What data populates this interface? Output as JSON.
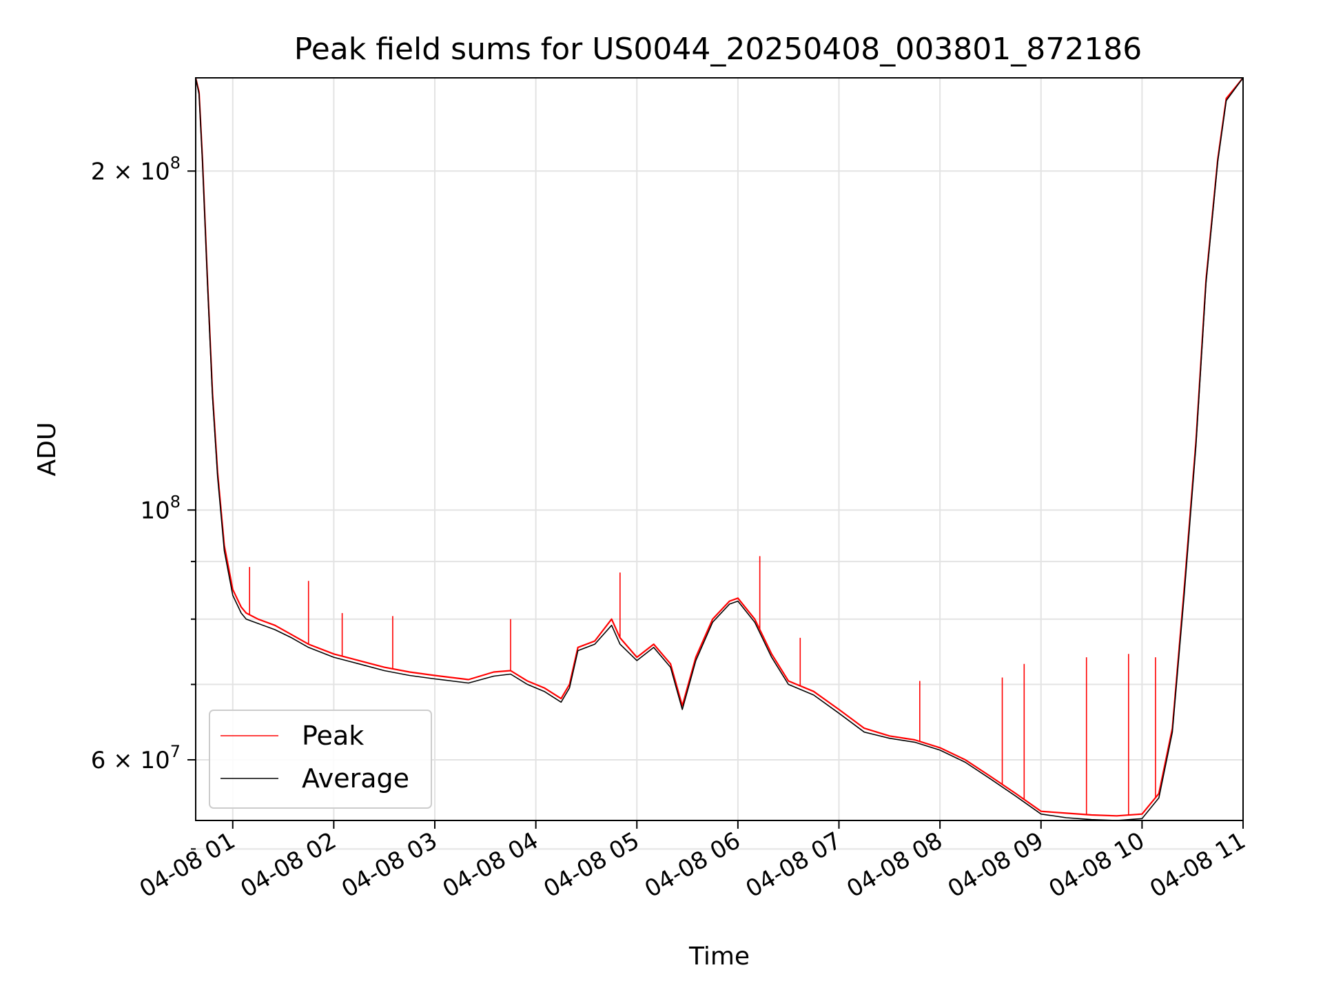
{
  "chart_data": {
    "type": "line",
    "title": "Peak field sums for US0044_20250408_003801_872186",
    "xlabel": "Time",
    "ylabel": "ADU",
    "yscale": "log",
    "ylim": [
      53000000,
      242000000
    ],
    "xlim": [
      "2025-04-08T00:38",
      "2025-04-08T11:00"
    ],
    "grid": true,
    "legend_position": "lower left",
    "x_ticks": [
      "04-08 01",
      "04-08 02",
      "04-08 03",
      "04-08 04",
      "04-08 05",
      "04-08 06",
      "04-08 07",
      "04-08 08",
      "04-08 09",
      "04-08 10",
      "04-08 11"
    ],
    "y_tick_labels": [
      {
        "value": 200000000,
        "mantissa": "2",
        "times": "×",
        "base": "10",
        "exp": "8"
      },
      {
        "value": 100000000,
        "mantissa": "",
        "times": "",
        "base": "10",
        "exp": "8"
      },
      {
        "value": 60000000,
        "mantissa": "6",
        "times": "×",
        "base": "10",
        "exp": "7"
      }
    ],
    "y_minor_ticks": [
      50000000,
      70000000,
      80000000,
      90000000
    ],
    "colors": {
      "peak": "#ff0000",
      "average": "#000000"
    },
    "series": [
      {
        "name": "Peak",
        "color": "#ff0000",
        "x": [
          "2025-04-08T00:38",
          "2025-04-08T00:40",
          "2025-04-08T00:42",
          "2025-04-08T00:45",
          "2025-04-08T00:48",
          "2025-04-08T00:51",
          "2025-04-08T00:55",
          "2025-04-08T01:00",
          "2025-04-08T01:05",
          "2025-04-08T01:08",
          "2025-04-08T01:15",
          "2025-04-08T01:25",
          "2025-04-08T01:35",
          "2025-04-08T01:45",
          "2025-04-08T02:00",
          "2025-04-08T02:15",
          "2025-04-08T02:30",
          "2025-04-08T02:45",
          "2025-04-08T03:00",
          "2025-04-08T03:20",
          "2025-04-08T03:35",
          "2025-04-08T03:45",
          "2025-04-08T03:55",
          "2025-04-08T04:05",
          "2025-04-08T04:15",
          "2025-04-08T04:20",
          "2025-04-08T04:25",
          "2025-04-08T04:35",
          "2025-04-08T04:45",
          "2025-04-08T04:50",
          "2025-04-08T05:00",
          "2025-04-08T05:10",
          "2025-04-08T05:20",
          "2025-04-08T05:27",
          "2025-04-08T05:35",
          "2025-04-08T05:45",
          "2025-04-08T05:55",
          "2025-04-08T06:00",
          "2025-04-08T06:10",
          "2025-04-08T06:20",
          "2025-04-08T06:30",
          "2025-04-08T06:45",
          "2025-04-08T07:00",
          "2025-04-08T07:15",
          "2025-04-08T07:30",
          "2025-04-08T07:45",
          "2025-04-08T08:00",
          "2025-04-08T08:15",
          "2025-04-08T08:30",
          "2025-04-08T08:45",
          "2025-04-08T09:00",
          "2025-04-08T09:15",
          "2025-04-08T09:30",
          "2025-04-08T09:45",
          "2025-04-08T10:00",
          "2025-04-08T10:10",
          "2025-04-08T10:18",
          "2025-04-08T10:25",
          "2025-04-08T10:32",
          "2025-04-08T10:38",
          "2025-04-08T10:45",
          "2025-04-08T10:50",
          "2025-04-08T11:00"
        ],
        "y": [
          242000000,
          235000000,
          205000000,
          160000000,
          127000000,
          108000000,
          93000000,
          85000000,
          82000000,
          81000000,
          80000000,
          79000000,
          77500000,
          76000000,
          74500000,
          73500000,
          72500000,
          71800000,
          71300000,
          70700000,
          71800000,
          72000000,
          70500000,
          69500000,
          68000000,
          70000000,
          75500000,
          76500000,
          80000000,
          77000000,
          74000000,
          76000000,
          73000000,
          67000000,
          74000000,
          80000000,
          83000000,
          83500000,
          80000000,
          74500000,
          70500000,
          69000000,
          66500000,
          64000000,
          63000000,
          62500000,
          61500000,
          60000000,
          58000000,
          56000000,
          54000000,
          53800000,
          53600000,
          53500000,
          53700000,
          56000000,
          64000000,
          85000000,
          115000000,
          160000000,
          205000000,
          232000000,
          242000000
        ],
        "spikes": [
          {
            "x": "2025-04-08T01:10",
            "y": 89000000
          },
          {
            "x": "2025-04-08T01:45",
            "y": 86500000
          },
          {
            "x": "2025-04-08T02:05",
            "y": 81000000
          },
          {
            "x": "2025-04-08T02:35",
            "y": 80500000
          },
          {
            "x": "2025-04-08T03:45",
            "y": 80000000
          },
          {
            "x": "2025-04-08T04:50",
            "y": 88000000
          },
          {
            "x": "2025-04-08T06:13",
            "y": 91000000
          },
          {
            "x": "2025-04-08T06:37",
            "y": 77000000
          },
          {
            "x": "2025-04-08T07:48",
            "y": 70500000
          },
          {
            "x": "2025-04-08T08:37",
            "y": 71000000
          },
          {
            "x": "2025-04-08T08:50",
            "y": 73000000
          },
          {
            "x": "2025-04-08T09:27",
            "y": 74000000
          },
          {
            "x": "2025-04-08T09:52",
            "y": 74500000
          },
          {
            "x": "2025-04-08T10:08",
            "y": 74000000
          }
        ]
      },
      {
        "name": "Average",
        "color": "#000000",
        "x": [
          "2025-04-08T00:38",
          "2025-04-08T00:40",
          "2025-04-08T00:42",
          "2025-04-08T00:45",
          "2025-04-08T00:48",
          "2025-04-08T00:51",
          "2025-04-08T00:55",
          "2025-04-08T01:00",
          "2025-04-08T01:05",
          "2025-04-08T01:08",
          "2025-04-08T01:15",
          "2025-04-08T01:25",
          "2025-04-08T01:35",
          "2025-04-08T01:45",
          "2025-04-08T02:00",
          "2025-04-08T02:15",
          "2025-04-08T02:30",
          "2025-04-08T02:45",
          "2025-04-08T03:00",
          "2025-04-08T03:20",
          "2025-04-08T03:35",
          "2025-04-08T03:45",
          "2025-04-08T03:55",
          "2025-04-08T04:05",
          "2025-04-08T04:15",
          "2025-04-08T04:20",
          "2025-04-08T04:25",
          "2025-04-08T04:35",
          "2025-04-08T04:45",
          "2025-04-08T04:50",
          "2025-04-08T05:00",
          "2025-04-08T05:10",
          "2025-04-08T05:20",
          "2025-04-08T05:27",
          "2025-04-08T05:35",
          "2025-04-08T05:45",
          "2025-04-08T05:55",
          "2025-04-08T06:00",
          "2025-04-08T06:10",
          "2025-04-08T06:20",
          "2025-04-08T06:30",
          "2025-04-08T06:45",
          "2025-04-08T07:00",
          "2025-04-08T07:15",
          "2025-04-08T07:30",
          "2025-04-08T07:45",
          "2025-04-08T08:00",
          "2025-04-08T08:15",
          "2025-04-08T08:30",
          "2025-04-08T08:45",
          "2025-04-08T09:00",
          "2025-04-08T09:15",
          "2025-04-08T09:30",
          "2025-04-08T09:45",
          "2025-04-08T10:00",
          "2025-04-08T10:10",
          "2025-04-08T10:18",
          "2025-04-08T10:25",
          "2025-04-08T10:32",
          "2025-04-08T10:38",
          "2025-04-08T10:45",
          "2025-04-08T10:50",
          "2025-04-08T11:00"
        ],
        "y": [
          242000000,
          234000000,
          204000000,
          159000000,
          126000000,
          107000000,
          92000000,
          84000000,
          81000000,
          80000000,
          79300000,
          78300000,
          77000000,
          75500000,
          74000000,
          73000000,
          72000000,
          71300000,
          70800000,
          70200000,
          71200000,
          71500000,
          70000000,
          69000000,
          67500000,
          69500000,
          75000000,
          76000000,
          79000000,
          76000000,
          73500000,
          75500000,
          72500000,
          66500000,
          73500000,
          79500000,
          82500000,
          83000000,
          79500000,
          74000000,
          70000000,
          68500000,
          66000000,
          63500000,
          62700000,
          62200000,
          61200000,
          59700000,
          57700000,
          55700000,
          53700000,
          53300000,
          53100000,
          53000000,
          53200000,
          55500000,
          63500000,
          84000000,
          114000000,
          159000000,
          204000000,
          231000000,
          242000000
        ]
      }
    ]
  }
}
